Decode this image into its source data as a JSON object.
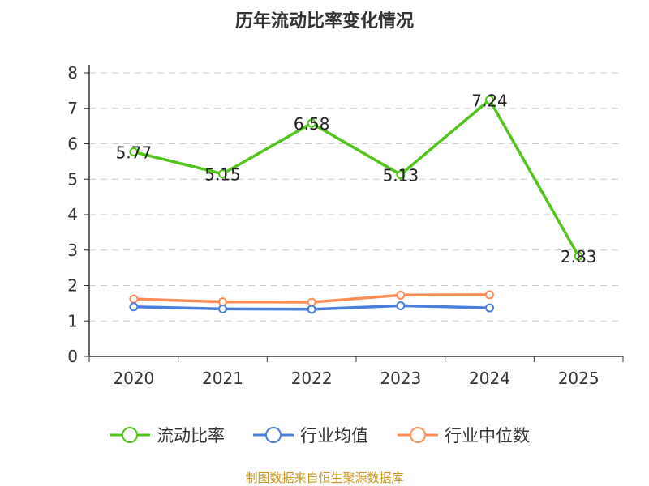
{
  "chart_data": {
    "type": "line",
    "title": "历年流动比率变化情况",
    "categories": [
      "2020",
      "2021",
      "2022",
      "2023",
      "2024",
      "2025"
    ],
    "ylim": [
      0,
      8
    ],
    "yticks": [
      0,
      1,
      2,
      3,
      4,
      5,
      6,
      7,
      8
    ],
    "grid": true,
    "legend_position": "bottom",
    "series": [
      {
        "name": "流动比率",
        "color": "#52c41a",
        "values": [
          5.77,
          5.15,
          6.58,
          5.13,
          7.24,
          2.83
        ],
        "labels": [
          "5.77",
          "5.15",
          "6.58",
          "5.13",
          "7.24",
          "2.83"
        ]
      },
      {
        "name": "行业均值",
        "color": "#4a7fe0",
        "values": [
          1.4,
          1.34,
          1.33,
          1.43,
          1.37,
          null
        ]
      },
      {
        "name": "行业中位数",
        "color": "#ff8c55",
        "values": [
          1.62,
          1.54,
          1.53,
          1.73,
          1.74,
          null
        ]
      }
    ]
  },
  "footer": "制图数据来自恒生聚源数据库"
}
